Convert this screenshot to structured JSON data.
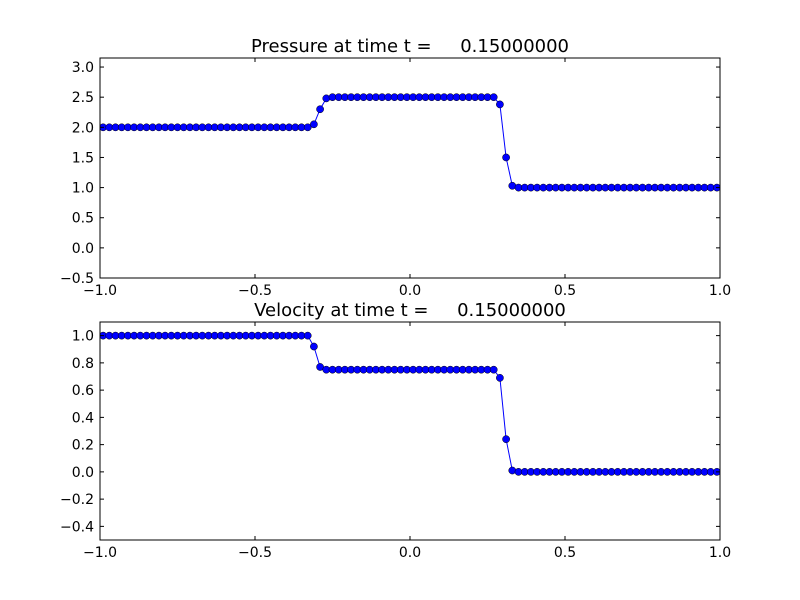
{
  "chart_data": [
    {
      "type": "line",
      "title": "Pressure at time t =     0.15000000",
      "color": "#0000ff",
      "marker": "o",
      "x": [
        -0.99,
        -0.97,
        -0.95,
        -0.93,
        -0.91,
        -0.89,
        -0.87,
        -0.85,
        -0.83,
        -0.81,
        -0.79,
        -0.77,
        -0.75,
        -0.73,
        -0.71,
        -0.69,
        -0.67,
        -0.65,
        -0.63,
        -0.61,
        -0.59,
        -0.57,
        -0.55,
        -0.53,
        -0.51,
        -0.49,
        -0.47,
        -0.45,
        -0.43,
        -0.41,
        -0.39,
        -0.37,
        -0.35,
        -0.33,
        -0.31,
        -0.29,
        -0.27,
        -0.25,
        -0.23,
        -0.21,
        -0.19,
        -0.17,
        -0.15,
        -0.13,
        -0.11,
        -0.09,
        -0.07,
        -0.05,
        -0.03,
        -0.01,
        0.01,
        0.03,
        0.05,
        0.07,
        0.09,
        0.11,
        0.13,
        0.15,
        0.17,
        0.19,
        0.21,
        0.23,
        0.25,
        0.27,
        0.29,
        0.31,
        0.33,
        0.35,
        0.37,
        0.39,
        0.41,
        0.43,
        0.45,
        0.47,
        0.49,
        0.51,
        0.53,
        0.55,
        0.57,
        0.59,
        0.61,
        0.63,
        0.65,
        0.67,
        0.69,
        0.71,
        0.73,
        0.75,
        0.77,
        0.79,
        0.81,
        0.83,
        0.85,
        0.87,
        0.89,
        0.91,
        0.93,
        0.95,
        0.97,
        0.99
      ],
      "values": [
        2,
        2,
        2,
        2,
        2,
        2,
        2,
        2,
        2,
        2,
        2,
        2,
        2,
        2,
        2,
        2,
        2,
        2,
        2,
        2,
        2,
        2,
        2,
        2,
        2,
        2,
        2,
        2,
        2,
        2,
        2,
        2,
        2,
        2,
        2.05,
        2.3,
        2.48,
        2.5,
        2.5,
        2.5,
        2.5,
        2.5,
        2.5,
        2.5,
        2.5,
        2.5,
        2.5,
        2.5,
        2.5,
        2.5,
        2.5,
        2.5,
        2.5,
        2.5,
        2.5,
        2.5,
        2.5,
        2.5,
        2.5,
        2.5,
        2.5,
        2.5,
        2.5,
        2.5,
        2.38,
        1.5,
        1.03,
        1,
        1,
        1,
        1,
        1,
        1,
        1,
        1,
        1,
        1,
        1,
        1,
        1,
        1,
        1,
        1,
        1,
        1,
        1,
        1,
        1,
        1,
        1,
        1,
        1,
        1,
        1,
        1,
        1,
        1,
        1,
        1,
        1
      ],
      "xlim": [
        -1,
        1
      ],
      "xticks": [
        {
          "value": -1,
          "label": "−1.0"
        },
        {
          "value": -0.5,
          "label": "−0.5"
        },
        {
          "value": 0,
          "label": "0.0"
        },
        {
          "value": 0.5,
          "label": "0.5"
        },
        {
          "value": 1,
          "label": "1.0"
        }
      ],
      "ylim": [
        -0.5,
        3.15
      ],
      "yticks": [
        {
          "value": -0.5,
          "label": "−0.5"
        },
        {
          "value": 0,
          "label": "0.0"
        },
        {
          "value": 0.5,
          "label": "0.5"
        },
        {
          "value": 1,
          "label": "1.0"
        },
        {
          "value": 1.5,
          "label": "1.5"
        },
        {
          "value": 2,
          "label": "2.0"
        },
        {
          "value": 2.5,
          "label": "2.5"
        },
        {
          "value": 3,
          "label": "3.0"
        }
      ]
    },
    {
      "type": "line",
      "title": "Velocity at time t =     0.15000000",
      "color": "#0000ff",
      "marker": "o",
      "x": [
        -0.99,
        -0.97,
        -0.95,
        -0.93,
        -0.91,
        -0.89,
        -0.87,
        -0.85,
        -0.83,
        -0.81,
        -0.79,
        -0.77,
        -0.75,
        -0.73,
        -0.71,
        -0.69,
        -0.67,
        -0.65,
        -0.63,
        -0.61,
        -0.59,
        -0.57,
        -0.55,
        -0.53,
        -0.51,
        -0.49,
        -0.47,
        -0.45,
        -0.43,
        -0.41,
        -0.39,
        -0.37,
        -0.35,
        -0.33,
        -0.31,
        -0.29,
        -0.27,
        -0.25,
        -0.23,
        -0.21,
        -0.19,
        -0.17,
        -0.15,
        -0.13,
        -0.11,
        -0.09,
        -0.07,
        -0.05,
        -0.03,
        -0.01,
        0.01,
        0.03,
        0.05,
        0.07,
        0.09,
        0.11,
        0.13,
        0.15,
        0.17,
        0.19,
        0.21,
        0.23,
        0.25,
        0.27,
        0.29,
        0.31,
        0.33,
        0.35,
        0.37,
        0.39,
        0.41,
        0.43,
        0.45,
        0.47,
        0.49,
        0.51,
        0.53,
        0.55,
        0.57,
        0.59,
        0.61,
        0.63,
        0.65,
        0.67,
        0.69,
        0.71,
        0.73,
        0.75,
        0.77,
        0.79,
        0.81,
        0.83,
        0.85,
        0.87,
        0.89,
        0.91,
        0.93,
        0.95,
        0.97,
        0.99
      ],
      "values": [
        1,
        1,
        1,
        1,
        1,
        1,
        1,
        1,
        1,
        1,
        1,
        1,
        1,
        1,
        1,
        1,
        1,
        1,
        1,
        1,
        1,
        1,
        1,
        1,
        1,
        1,
        1,
        1,
        1,
        1,
        1,
        1,
        1,
        1,
        0.92,
        0.77,
        0.75,
        0.75,
        0.75,
        0.75,
        0.75,
        0.75,
        0.75,
        0.75,
        0.75,
        0.75,
        0.75,
        0.75,
        0.75,
        0.75,
        0.75,
        0.75,
        0.75,
        0.75,
        0.75,
        0.75,
        0.75,
        0.75,
        0.75,
        0.75,
        0.75,
        0.75,
        0.75,
        0.75,
        0.69,
        0.24,
        0.01,
        0,
        0,
        0,
        0,
        0,
        0,
        0,
        0,
        0,
        0,
        0,
        0,
        0,
        0,
        0,
        0,
        0,
        0,
        0,
        0,
        0,
        0,
        0,
        0,
        0,
        0,
        0,
        0,
        0,
        0,
        0,
        0,
        0
      ],
      "xlim": [
        -1,
        1
      ],
      "xticks": [
        {
          "value": -1,
          "label": "−1.0"
        },
        {
          "value": -0.5,
          "label": "−0.5"
        },
        {
          "value": 0,
          "label": "0.0"
        },
        {
          "value": 0.5,
          "label": "0.5"
        },
        {
          "value": 1,
          "label": "1.0"
        }
      ],
      "ylim": [
        -0.5,
        1.1
      ],
      "yticks": [
        {
          "value": -0.4,
          "label": "−0.4"
        },
        {
          "value": -0.2,
          "label": "−0.2"
        },
        {
          "value": 0,
          "label": "0.0"
        },
        {
          "value": 0.2,
          "label": "0.2"
        },
        {
          "value": 0.4,
          "label": "0.4"
        },
        {
          "value": 0.6,
          "label": "0.6"
        },
        {
          "value": 0.8,
          "label": "0.8"
        },
        {
          "value": 1,
          "label": "1.0"
        }
      ]
    }
  ]
}
